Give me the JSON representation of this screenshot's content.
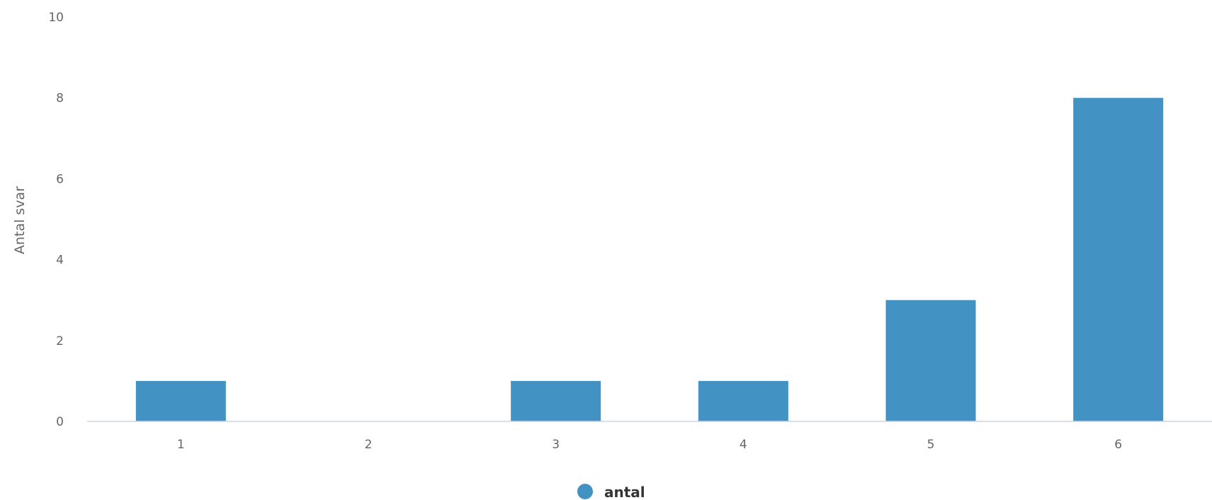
{
  "chart_data": {
    "type": "bar",
    "title": "",
    "xlabel": "",
    "ylabel": "Antal svar",
    "categories": [
      "1",
      "2",
      "3",
      "4",
      "5",
      "6"
    ],
    "series": [
      {
        "name": "antal",
        "values": [
          1,
          0,
          1,
          1,
          3,
          8
        ],
        "color": "#4292c3"
      }
    ],
    "ylim": [
      0,
      10
    ],
    "yticks": [
      0,
      2,
      4,
      6,
      8,
      10
    ],
    "grid": false,
    "legend": {
      "position": "bottom-center"
    },
    "colors": {
      "bar": "#4292c3",
      "axis_line": "#ccd6eb",
      "tick_text": "#666666",
      "legend_text": "#333333"
    }
  }
}
